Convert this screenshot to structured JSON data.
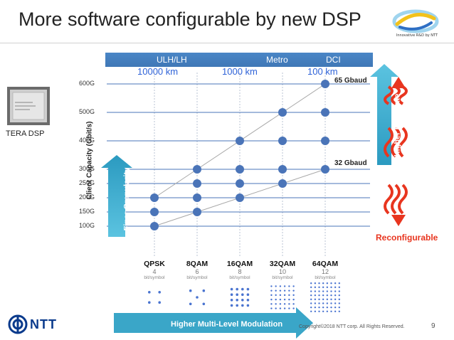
{
  "slide": {
    "title": "More software configurable by new DSP",
    "logo_text": "Innovative R&D by NTT",
    "chip_label": "TERA DSP",
    "brand": "NTT",
    "footer": "Copyright©2018  NTT corp. All Rights Reserved.",
    "page_number": "9",
    "reconfigurable": "Reconfigurable",
    "higher_baud_rate": "Higher Baud rate",
    "finer_granularity": "Finer Granularity",
    "higher_multi_level": "Higher Multi-Level Modulation",
    "bands": {
      "ulh": "ULH/LH",
      "metro": "Metro",
      "dci": "DCI"
    },
    "distances": {
      "ulh": "10000 km",
      "metro": "1000 km",
      "dci": "100 km"
    },
    "baud_65": "65 Gbaud",
    "baud_32": "32 Gbaud",
    "bits_unit": "bit/symbol",
    "colors": {
      "accent": "#4a86c6",
      "dot": "#4a74b8",
      "red": "#e8351f",
      "teal": "#3aa6c8",
      "title": "#222222"
    }
  },
  "chart_data": {
    "type": "scatter",
    "ylabel": "Client Capacity (Gbit/s)",
    "xlabel": "",
    "categories": [
      "QPSK",
      "8QAM",
      "16QAM",
      "32QAM",
      "64QAM"
    ],
    "bits_per_symbol": [
      "4",
      "6",
      "8",
      "10",
      "12"
    ],
    "y_ticks": [
      "100G",
      "150G",
      "200G",
      "250G",
      "300G",
      "400G",
      "500G",
      "600G"
    ],
    "points": [
      {
        "x": "QPSK",
        "y": 100
      },
      {
        "x": "QPSK",
        "y": 150
      },
      {
        "x": "QPSK",
        "y": 200
      },
      {
        "x": "8QAM",
        "y": 150
      },
      {
        "x": "8QAM",
        "y": 200
      },
      {
        "x": "8QAM",
        "y": 250
      },
      {
        "x": "8QAM",
        "y": 300
      },
      {
        "x": "16QAM",
        "y": 200
      },
      {
        "x": "16QAM",
        "y": 250
      },
      {
        "x": "16QAM",
        "y": 300
      },
      {
        "x": "16QAM",
        "y": 400
      },
      {
        "x": "32QAM",
        "y": 250
      },
      {
        "x": "32QAM",
        "y": 300
      },
      {
        "x": "32QAM",
        "y": 400
      },
      {
        "x": "32QAM",
        "y": 500
      },
      {
        "x": "64QAM",
        "y": 300
      },
      {
        "x": "64QAM",
        "y": 400
      },
      {
        "x": "64QAM",
        "y": 500
      },
      {
        "x": "64QAM",
        "y": 600
      }
    ],
    "trend_lines": [
      {
        "name": "32 Gbaud",
        "from": {
          "x": "QPSK",
          "y": 100
        },
        "to": {
          "x": "64QAM",
          "y": 300
        }
      },
      {
        "name": "65 Gbaud",
        "from": {
          "x": "QPSK",
          "y": 200
        },
        "to": {
          "x": "64QAM",
          "y": 600
        }
      }
    ]
  }
}
